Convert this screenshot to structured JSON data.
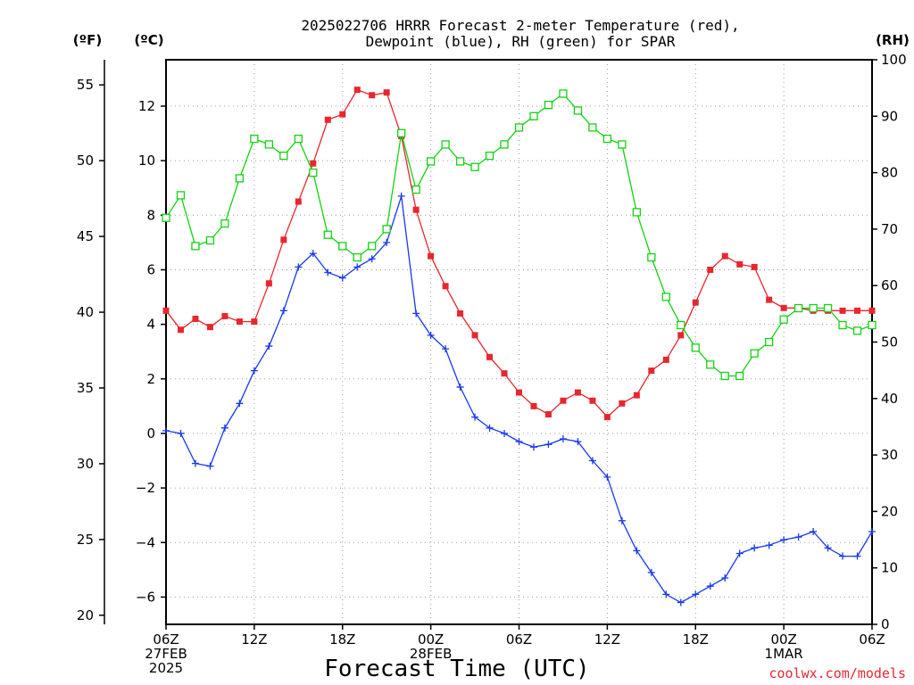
{
  "chart_data": {
    "type": "line",
    "title": [
      "2025022706 HRRR Forecast 2-meter Temperature (red),",
      "Dewpoint (blue), RH (green) for SPAR"
    ],
    "xlabel": "Forecast Time (UTC)",
    "credit": "coolwx.com/models",
    "units": {
      "fahrenheit": "(ºF)",
      "celsius": "(ºC)",
      "rh": "(RH)"
    },
    "x_hours": [
      0,
      1,
      2,
      3,
      4,
      5,
      6,
      7,
      8,
      9,
      10,
      11,
      12,
      13,
      14,
      15,
      16,
      17,
      18,
      19,
      20,
      21,
      22,
      23,
      24,
      25,
      26,
      27,
      28,
      29,
      30,
      31,
      32,
      33,
      34,
      35,
      36,
      37,
      38,
      39,
      40,
      41,
      42,
      43,
      44,
      45,
      46,
      47,
      48
    ],
    "x_tick_hours": [
      0,
      6,
      12,
      18,
      24,
      30,
      36,
      42,
      48
    ],
    "x_tick_labels": [
      [
        "06Z",
        "27FEB",
        "2025"
      ],
      [
        "12Z"
      ],
      [
        "18Z"
      ],
      [
        "00Z",
        "28FEB"
      ],
      [
        "06Z"
      ],
      [
        "12Z"
      ],
      [
        "18Z"
      ],
      [
        "00Z",
        "1MAR"
      ],
      [
        "06Z"
      ]
    ],
    "y_celsius": {
      "range": [
        -7.0,
        13.7
      ],
      "ticks": [
        -6,
        -4,
        -2,
        0,
        2,
        4,
        6,
        8,
        10,
        12
      ]
    },
    "y_fahrenheit": {
      "range": [
        19.4,
        56.66
      ],
      "ticks": [
        20,
        25,
        30,
        35,
        40,
        45,
        50,
        55
      ]
    },
    "y_rh": {
      "range": [
        0,
        100
      ],
      "ticks": [
        0,
        10,
        20,
        30,
        40,
        50,
        60,
        70,
        80,
        90,
        100
      ]
    },
    "grid": true,
    "series": [
      {
        "name": "Temperature",
        "axis": "celsius",
        "color": "#e8262e",
        "marker": "filled-square",
        "values": [
          4.5,
          3.8,
          4.2,
          3.9,
          4.3,
          4.1,
          4.1,
          5.5,
          7.1,
          8.5,
          9.9,
          11.5,
          11.7,
          12.6,
          12.4,
          12.5,
          10.9,
          8.2,
          6.5,
          5.4,
          4.4,
          3.6,
          2.8,
          2.2,
          1.5,
          1.0,
          0.7,
          1.2,
          1.5,
          1.2,
          0.6,
          1.1,
          1.4,
          2.3,
          2.7,
          3.6,
          4.8,
          6.0,
          6.5,
          6.2,
          6.1,
          4.9,
          4.6,
          4.6,
          4.5,
          4.5,
          4.5,
          4.5,
          4.5
        ]
      },
      {
        "name": "Dewpoint",
        "axis": "celsius",
        "color": "#1838ee",
        "marker": "plus",
        "values": [
          0.1,
          0.0,
          -1.1,
          -1.2,
          0.2,
          1.1,
          2.3,
          3.2,
          4.5,
          6.1,
          6.6,
          5.9,
          5.7,
          6.1,
          6.4,
          7.0,
          8.7,
          4.4,
          3.6,
          3.1,
          1.7,
          0.6,
          0.2,
          0.0,
          -0.3,
          -0.5,
          -0.4,
          -0.2,
          -0.3,
          -1.0,
          -1.6,
          -3.2,
          -4.3,
          -5.1,
          -5.9,
          -6.2,
          -5.9,
          -5.6,
          -5.3,
          -4.4,
          -4.2,
          -4.1,
          -3.9,
          -3.8,
          -3.6,
          -4.2,
          -4.5,
          -4.5,
          -3.6
        ]
      },
      {
        "name": "RH",
        "axis": "rh",
        "color": "#14d214",
        "marker": "open-square",
        "values": [
          72,
          76,
          67,
          68,
          71,
          79,
          86,
          85,
          83,
          86,
          80,
          69,
          67,
          65,
          67,
          70,
          87,
          77,
          82,
          85,
          82,
          81,
          83,
          85,
          88,
          90,
          92,
          94,
          91,
          88,
          86,
          85,
          73,
          65,
          58,
          53,
          49,
          46,
          44,
          44,
          48,
          50,
          54,
          56,
          56,
          56,
          53,
          52,
          53
        ]
      }
    ]
  }
}
